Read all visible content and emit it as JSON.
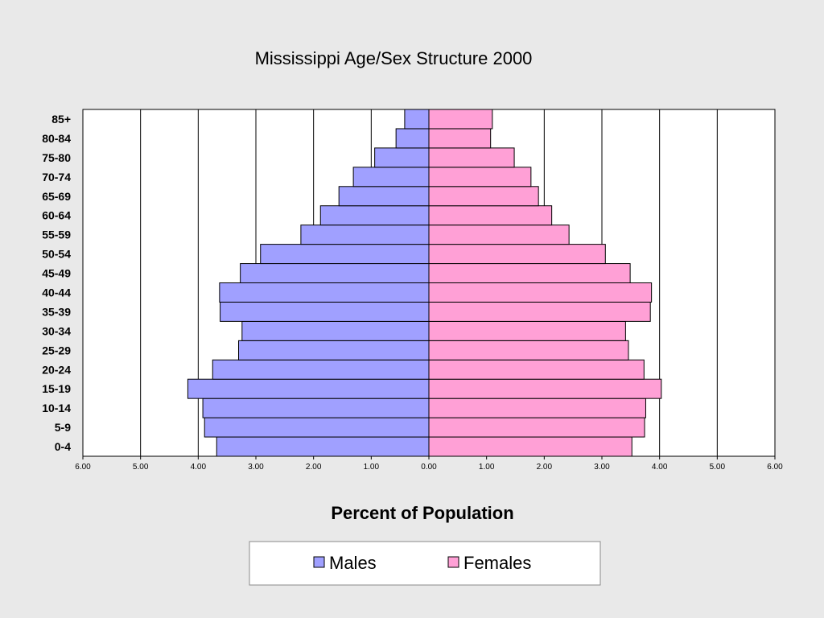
{
  "chart_data": {
    "type": "bar",
    "orientation": "horizontal",
    "title": "Mississippi Age/Sex  Structure 2000",
    "xlabel": "Percent of Population",
    "ylabel": "",
    "xlim": [
      -6,
      6
    ],
    "x_ticks": [
      "6.00",
      "5.00",
      "4.00",
      "3.00",
      "2.00",
      "1.00",
      "0.00",
      "1.00",
      "2.00",
      "3.00",
      "4.00",
      "5.00",
      "6.00"
    ],
    "categories": [
      "0-4",
      "5-9",
      "10-14",
      "15-19",
      "20-24",
      "25-29",
      "30-34",
      "35-39",
      "40-44",
      "45-49",
      "50-54",
      "55-59",
      "60-64",
      "65-69",
      "70-74",
      "75-80",
      "80-84",
      "85+"
    ],
    "series": [
      {
        "name": "Males",
        "color": "#a0a0ff",
        "values": [
          3.68,
          3.89,
          3.92,
          4.18,
          3.75,
          3.3,
          3.24,
          3.62,
          3.63,
          3.27,
          2.92,
          2.22,
          1.88,
          1.56,
          1.31,
          0.94,
          0.57,
          0.42
        ]
      },
      {
        "name": "Females",
        "color": "#ffa0d6",
        "values": [
          3.52,
          3.74,
          3.76,
          4.03,
          3.73,
          3.46,
          3.41,
          3.84,
          3.86,
          3.49,
          3.06,
          2.43,
          2.13,
          1.9,
          1.77,
          1.48,
          1.07,
          1.1
        ]
      }
    ],
    "grid": true,
    "legend": "bottom"
  }
}
